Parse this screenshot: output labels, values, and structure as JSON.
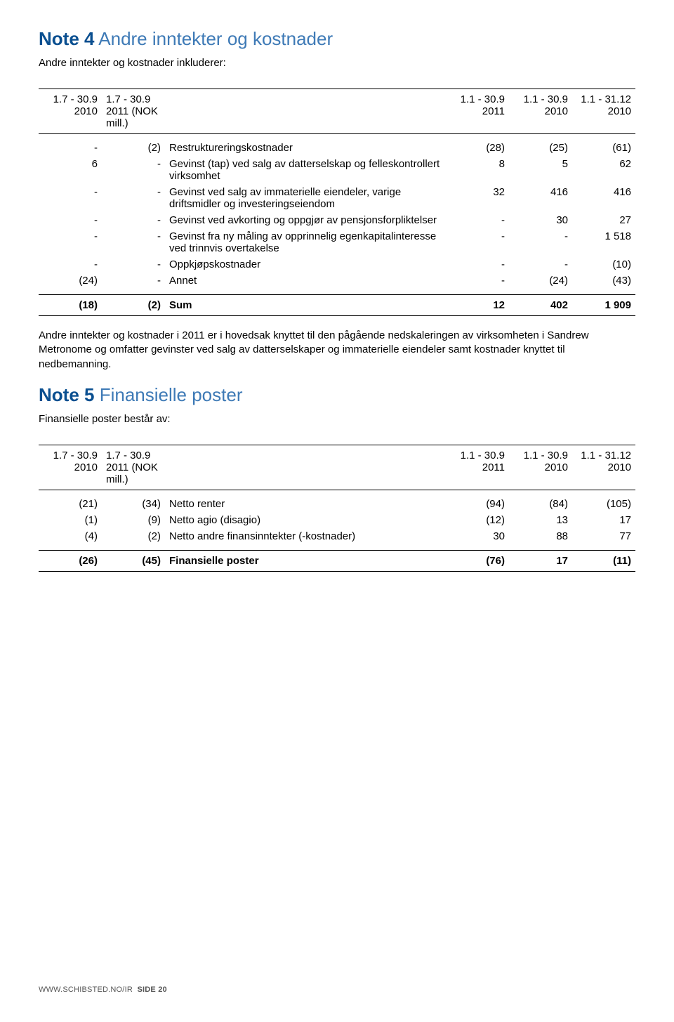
{
  "note4": {
    "title_bold": "Note 4",
    "title_light": "Andre inntekter og kostnader",
    "intro": "Andre inntekter og kostnader inkluderer:",
    "header": {
      "c1_top": "1.7 - 30.9",
      "c1_bot": "2010",
      "c2_top": "1.7 - 30.9",
      "c2_bot": "2011",
      "c2_unit": "(NOK mill.)",
      "c3_top": "1.1 - 30.9",
      "c3_bot": "2011",
      "c4_top": "1.1 - 30.9",
      "c4_bot": "2010",
      "c5_top": "1.1 - 31.12",
      "c5_bot": "2010"
    },
    "rows": [
      {
        "c1": "-",
        "c2": "(2)",
        "desc": "Restruktureringskostnader",
        "c3": "(28)",
        "c4": "(25)",
        "c5": "(61)"
      },
      {
        "c1": "6",
        "c2": "-",
        "desc": "Gevinst (tap) ved salg av datterselskap og felleskontrollert virksomhet",
        "c3": "8",
        "c4": "5",
        "c5": "62"
      },
      {
        "c1": "-",
        "c2": "-",
        "desc": "Gevinst ved salg av immaterielle eiendeler, varige driftsmidler og investeringseiendom",
        "c3": "32",
        "c4": "416",
        "c5": "416"
      },
      {
        "c1": "-",
        "c2": "-",
        "desc": "Gevinst ved avkorting og oppgjør av pensjonsforpliktelser",
        "c3": "-",
        "c4": "30",
        "c5": "27"
      },
      {
        "c1": "-",
        "c2": "-",
        "desc": "Gevinst fra ny måling av opprinnelig egenkapitalinteresse ved trinnvis overtakelse",
        "c3": "-",
        "c4": "-",
        "c5": "1 518"
      },
      {
        "c1": "-",
        "c2": "-",
        "desc": "Oppkjøpskostnader",
        "c3": "-",
        "c4": "-",
        "c5": "(10)"
      },
      {
        "c1": "(24)",
        "c2": "-",
        "desc": "Annet",
        "c3": "-",
        "c4": "(24)",
        "c5": "(43)"
      }
    ],
    "sum": {
      "c1": "(18)",
      "c2": "(2)",
      "desc": "Sum",
      "c3": "12",
      "c4": "402",
      "c5": "1 909"
    },
    "body": "Andre inntekter og kostnader i 2011 er i hovedsak knyttet til den pågående nedskaleringen av virksomheten i Sandrew Metronome og omfatter gevinster ved salg av datterselskaper og immaterielle eiendeler samt kostnader knyttet til nedbemanning."
  },
  "note5": {
    "title_bold": "Note 5",
    "title_light": "Finansielle poster",
    "intro": "Finansielle poster består av:",
    "header": {
      "c1_top": "1.7 - 30.9",
      "c1_bot": "2010",
      "c2_top": "1.7 - 30.9",
      "c2_bot": "2011",
      "c2_unit": "(NOK mill.)",
      "c3_top": "1.1 - 30.9",
      "c3_bot": "2011",
      "c4_top": "1.1 - 30.9",
      "c4_bot": "2010",
      "c5_top": "1.1 - 31.12",
      "c5_bot": "2010"
    },
    "rows": [
      {
        "c1": "(21)",
        "c2": "(34)",
        "desc": "Netto renter",
        "c3": "(94)",
        "c4": "(84)",
        "c5": "(105)"
      },
      {
        "c1": "(1)",
        "c2": "(9)",
        "desc": "Netto agio (disagio)",
        "c3": "(12)",
        "c4": "13",
        "c5": "17"
      },
      {
        "c1": "(4)",
        "c2": "(2)",
        "desc": "Netto andre finansinntekter (-kostnader)",
        "c3": "30",
        "c4": "88",
        "c5": "77"
      }
    ],
    "sum": {
      "c1": "(26)",
      "c2": "(45)",
      "desc": "Finansielle poster",
      "c3": "(76)",
      "c4": "17",
      "c5": "(11)"
    }
  },
  "footer": {
    "url": "WWW.SCHIBSTED.NO/IR",
    "page": "SIDE 20"
  },
  "colors": {
    "title_bold": "#0a4f90",
    "title_light": "#3e7ab6",
    "text": "#000000",
    "border": "#000000",
    "footer": "#555555"
  }
}
